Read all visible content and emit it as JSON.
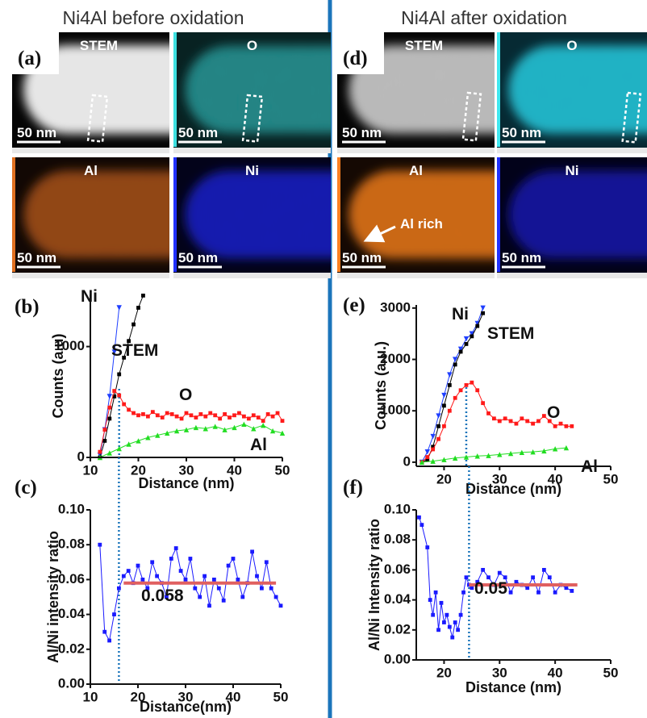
{
  "headings": [
    "Ni4Al before oxidation",
    "Ni4Al after oxidation"
  ],
  "panel_labels": [
    "(a)",
    "(d)"
  ],
  "images": [
    {
      "label": "STEM",
      "scale": "50 nm"
    },
    {
      "label": "O",
      "scale": "50 nm"
    },
    {
      "label": "Al",
      "scale": "50 nm"
    },
    {
      "label": "Ni",
      "scale": "50 nm"
    },
    {
      "label": "STEM",
      "scale": "50 nm"
    },
    {
      "label": "O",
      "scale": "50 nm"
    },
    {
      "label": "Al",
      "scale": "50 nm",
      "note": "Al rich"
    },
    {
      "label": "Ni",
      "scale": "50 nm"
    }
  ],
  "chart_data": [
    {
      "type": "line",
      "label": "(b)",
      "xlabel": "Distance (nm)",
      "ylabel": "Counts (a.u)",
      "xlim": [
        10,
        50
      ],
      "xticks": [
        10,
        20,
        30,
        40,
        50
      ],
      "ylim": [
        0,
        1470
      ],
      "yticks": [
        0,
        1000
      ],
      "vline": 16,
      "series": [
        {
          "name": "Ni",
          "color": "#1f3fff",
          "marker": "triangle",
          "x": [
            12,
            13,
            14,
            15,
            16
          ],
          "values": [
            20,
            250,
            550,
            950,
            1350
          ]
        },
        {
          "name": "STEM",
          "color": "#000000",
          "marker": "square",
          "x": [
            12,
            13,
            14,
            15,
            16,
            17,
            18,
            19,
            20,
            21
          ],
          "values": [
            0,
            150,
            350,
            550,
            750,
            900,
            1050,
            1200,
            1350,
            1460
          ]
        },
        {
          "name": "O",
          "color": "#ff1a1a",
          "marker": "square",
          "x": [
            12,
            13,
            14,
            15,
            16,
            17,
            18,
            19,
            20,
            21,
            22,
            23,
            24,
            25,
            26,
            27,
            28,
            29,
            30,
            31,
            32,
            33,
            34,
            35,
            36,
            37,
            38,
            39,
            40,
            41,
            42,
            43,
            44,
            45,
            46,
            47,
            48,
            49,
            50
          ],
          "values": [
            50,
            250,
            450,
            600,
            560,
            480,
            430,
            400,
            380,
            390,
            370,
            410,
            380,
            360,
            400,
            390,
            370,
            350,
            400,
            380,
            360,
            390,
            370,
            400,
            380,
            350,
            390,
            360,
            380,
            400,
            370,
            350,
            380,
            360,
            330,
            390,
            370,
            400,
            330
          ]
        },
        {
          "name": "Al",
          "color": "#22dd22",
          "marker": "triangle-up",
          "x": [
            12,
            14,
            16,
            18,
            20,
            22,
            24,
            26,
            28,
            30,
            32,
            34,
            36,
            38,
            40,
            42,
            44,
            46,
            48,
            50
          ],
          "values": [
            0,
            40,
            80,
            120,
            150,
            180,
            200,
            220,
            240,
            250,
            270,
            260,
            280,
            250,
            270,
            300,
            260,
            290,
            240,
            220
          ]
        }
      ]
    },
    {
      "type": "line",
      "label": "(c)",
      "xlabel": "Distance(nm)",
      "ylabel": "Al/Ni intensity ratio",
      "xlim": [
        10,
        50
      ],
      "xticks": [
        10,
        20,
        30,
        40,
        50
      ],
      "ylim": [
        0,
        0.1
      ],
      "yticks": [
        {
          "value": 0,
          "label": "0.00"
        },
        0.02,
        0.04,
        0.06,
        0.08,
        {
          "value": 0.1,
          "label": "0.10"
        }
      ],
      "vline": 16,
      "color": "#1a1aff",
      "marker": "square",
      "x": [
        12,
        13,
        14,
        15,
        16,
        17,
        18,
        19,
        20,
        21,
        22,
        23,
        24,
        25,
        26,
        27,
        28,
        29,
        30,
        31,
        32,
        33,
        34,
        35,
        36,
        37,
        38,
        39,
        40,
        41,
        42,
        43,
        44,
        45,
        46,
        47,
        48,
        49,
        50
      ],
      "values": [
        0.08,
        0.03,
        0.025,
        0.04,
        0.055,
        0.062,
        0.065,
        0.058,
        0.068,
        0.06,
        0.055,
        0.07,
        0.062,
        0.058,
        0.05,
        0.072,
        0.078,
        0.065,
        0.06,
        0.072,
        0.055,
        0.05,
        0.062,
        0.045,
        0.06,
        0.055,
        0.048,
        0.068,
        0.072,
        0.06,
        0.05,
        0.058,
        0.076,
        0.062,
        0.055,
        0.07,
        0.055,
        0.05,
        0.045
      ],
      "fit": {
        "value": 0.058,
        "x": [
          17,
          49
        ],
        "color": "#e06060"
      }
    },
    {
      "type": "line",
      "label": "(e)",
      "xlabel": "Distance (nm)",
      "ylabel": "Counts (a.u.)",
      "xlim": [
        15,
        50
      ],
      "xticks": [
        20,
        30,
        40,
        50
      ],
      "ylim": [
        -80,
        3060
      ],
      "yticks": [
        0,
        1000,
        2000,
        3000
      ],
      "vline": 24,
      "series": [
        {
          "name": "Ni",
          "color": "#1f3fff",
          "marker": "triangle",
          "x": [
            16,
            17,
            18,
            19,
            20,
            21,
            22,
            23,
            24,
            25,
            26,
            27
          ],
          "values": [
            0,
            200,
            500,
            900,
            1300,
            1700,
            2000,
            2200,
            2400,
            2500,
            2700,
            3000
          ]
        },
        {
          "name": "STEM",
          "color": "#000000",
          "marker": "square",
          "x": [
            16,
            17,
            18,
            19,
            20,
            21,
            22,
            23,
            24,
            25,
            26,
            27
          ],
          "values": [
            0,
            50,
            300,
            700,
            1100,
            1500,
            1900,
            2150,
            2300,
            2450,
            2650,
            2900
          ]
        },
        {
          "name": "O",
          "color": "#ff1a1a",
          "marker": "square",
          "x": [
            16,
            17,
            18,
            19,
            20,
            21,
            22,
            23,
            24,
            25,
            26,
            27,
            28,
            29,
            30,
            31,
            32,
            33,
            34,
            35,
            36,
            37,
            38,
            39,
            40,
            41,
            42,
            43
          ],
          "values": [
            0,
            100,
            250,
            450,
            700,
            1000,
            1250,
            1400,
            1500,
            1550,
            1400,
            1150,
            950,
            850,
            800,
            850,
            800,
            750,
            850,
            800,
            750,
            800,
            900,
            800,
            700,
            750,
            700,
            700
          ]
        },
        {
          "name": "Al",
          "color": "#22dd22",
          "marker": "triangle-up",
          "x": [
            16,
            18,
            20,
            22,
            24,
            26,
            28,
            30,
            32,
            34,
            36,
            38,
            40,
            42
          ],
          "values": [
            0,
            20,
            50,
            80,
            100,
            120,
            130,
            150,
            170,
            190,
            200,
            220,
            260,
            280
          ]
        }
      ]
    },
    {
      "type": "line",
      "label": "(f)",
      "xlabel": "Distance (nm)",
      "ylabel": "Al/Ni Intensity ratio",
      "xlim": [
        15,
        50
      ],
      "xticks": [
        20,
        30,
        40,
        50
      ],
      "ylim": [
        0,
        0.1
      ],
      "yticks": [
        {
          "value": 0,
          "label": "0.00"
        },
        0.02,
        0.04,
        0.06,
        0.08,
        {
          "value": 0.1,
          "label": "0.10"
        }
      ],
      "vline": 24.5,
      "color": "#1a1aff",
      "marker": "square",
      "x": [
        15.5,
        16,
        17,
        17.5,
        18,
        18.5,
        19,
        19.5,
        20,
        20.5,
        21,
        21.5,
        22,
        22.5,
        23,
        23.5,
        24,
        24.5,
        25,
        26,
        27,
        28,
        29,
        30,
        31,
        32,
        33,
        34,
        35,
        36,
        37,
        38,
        39,
        40,
        41,
        42,
        43
      ],
      "values": [
        0.095,
        0.09,
        0.075,
        0.04,
        0.03,
        0.045,
        0.02,
        0.038,
        0.025,
        0.03,
        0.022,
        0.015,
        0.025,
        0.02,
        0.03,
        0.045,
        0.055,
        0.05,
        0.048,
        0.052,
        0.06,
        0.055,
        0.05,
        0.058,
        0.055,
        0.045,
        0.052,
        0.05,
        0.048,
        0.055,
        0.045,
        0.06,
        0.055,
        0.045,
        0.05,
        0.048,
        0.046
      ],
      "fit": {
        "value": 0.05,
        "x": [
          24.5,
          44
        ],
        "color": "#e06060"
      }
    }
  ]
}
